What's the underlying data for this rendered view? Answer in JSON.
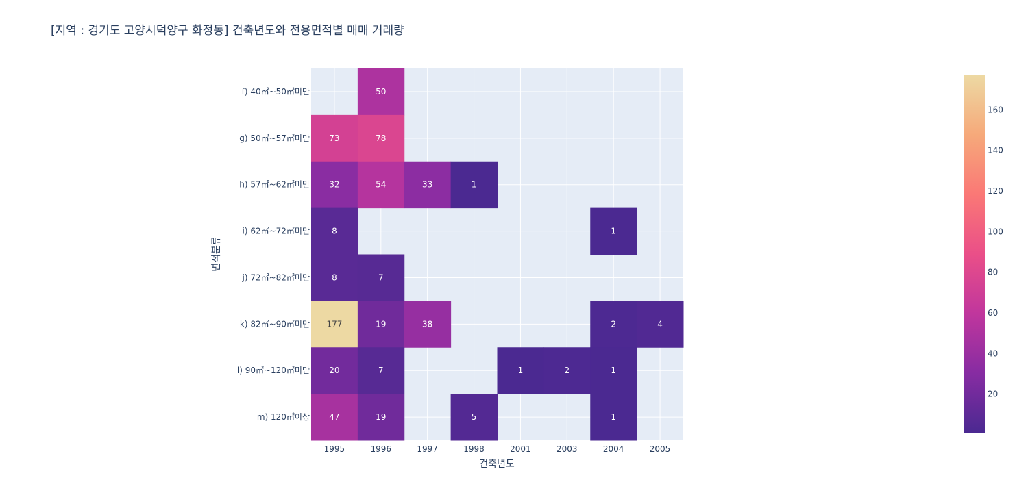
{
  "chart_data": {
    "type": "heatmap",
    "title": "[지역 : 경기도 고양시덕양구 화정동] 건축년도와 전용면적별 매매 거래량",
    "xlabel": "건축년도",
    "ylabel": "면적분류",
    "x": [
      "1995",
      "1996",
      "1997",
      "1998",
      "2001",
      "2003",
      "2004",
      "2005"
    ],
    "y": [
      "f) 40㎡~50㎡미만",
      "g) 50㎡~57㎡미만",
      "h) 57㎡~62㎡미만",
      "i) 62㎡~72㎡미만",
      "j) 72㎡~82㎡미만",
      "k) 82㎡~90㎡미만",
      "l) 90㎡~120㎡미만",
      "m) 120㎡이상"
    ],
    "z": [
      [
        null,
        50,
        null,
        null,
        null,
        null,
        null,
        null
      ],
      [
        73,
        78,
        null,
        null,
        null,
        null,
        null,
        null
      ],
      [
        32,
        54,
        33,
        1,
        null,
        null,
        null,
        null
      ],
      [
        8,
        null,
        null,
        null,
        null,
        null,
        1,
        null
      ],
      [
        8,
        7,
        null,
        null,
        null,
        null,
        null,
        null
      ],
      [
        177,
        19,
        38,
        null,
        null,
        null,
        2,
        4
      ],
      [
        20,
        7,
        null,
        null,
        1,
        2,
        1,
        null
      ],
      [
        47,
        19,
        null,
        5,
        null,
        null,
        1,
        null
      ]
    ],
    "zmin": 1,
    "zmax": 177,
    "colorscale": [
      "#0d0887",
      "#46039f",
      "#7201a8",
      "#9c179e",
      "#bd3786",
      "#d8576b",
      "#ed7953",
      "#fb9f3a",
      "#fdca26",
      "#f0f921"
    ],
    "display_colorscale": [
      "#4b2991",
      "#872ca2",
      "#c0369d",
      "#ea4f88",
      "#fa7876",
      "#f6a97a",
      "#edd9a3"
    ],
    "colorbar_ticks": [
      20,
      40,
      60,
      80,
      100,
      120,
      140,
      160
    ],
    "plot_bg": "#e5ecf6",
    "grid_color": "#ffffff"
  }
}
